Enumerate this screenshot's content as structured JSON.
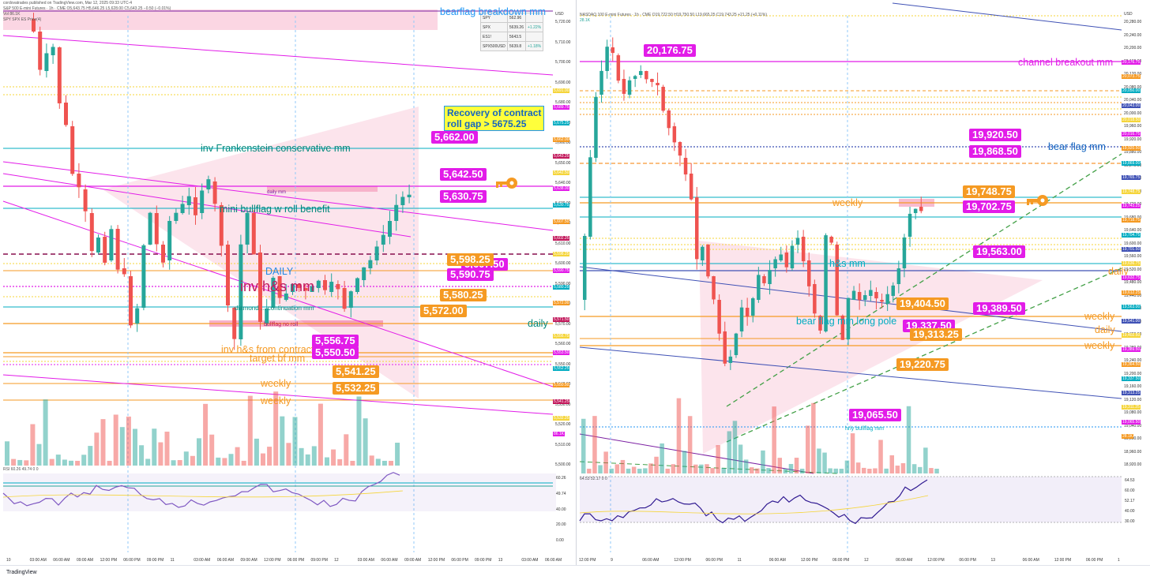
{
  "left": {
    "header": "cordovatrades published on TradingView.com, Mar 12, 2025 09:33 UTC-4",
    "title_line": "S&P 500 E-mini Futures · 1h · CME  O5,643.75 H5,646.25 L5,628.00 C5,643.25 −0.50 (−0.01%)",
    "vol_line": "Vol 86.1K",
    "compare_line": "SPY SPX ES Price(4)",
    "rsi_line": "RSI 60.26 49.74 0 0",
    "compare_table": [
      {
        "sym": "SPY",
        "val": "562.96",
        "chg": ""
      },
      {
        "sym": "SPX",
        "val": "5639.26",
        "chg": "+1.22%"
      },
      {
        "sym": "ES1!",
        "val": "5643.5",
        "chg": ""
      },
      {
        "sym": "SPX500USD",
        "val": "5639.8",
        "chg": "+1.18%"
      }
    ],
    "annotations": [
      {
        "text": "bearflag breakdown mm",
        "color": "#2196f3"
      },
      {
        "text": "inv Frankenstein conservative mm",
        "color": "#00897b"
      },
      {
        "text": "daily mm",
        "color": "#7b1fa2"
      },
      {
        "text": "mini bullflag w roll benefit",
        "color": "#00897b"
      },
      {
        "text": "DAILY",
        "color": "#1e88e5"
      },
      {
        "text": "inv h&s mm",
        "color": "#c2185b"
      },
      {
        "text": "diamond ... continuation mm",
        "color": "#00897b"
      },
      {
        "text": "bullflag no roll",
        "color": "#c2185b"
      },
      {
        "text": "daily",
        "color": "#00897b"
      },
      {
        "text": "inv h&s from contract",
        "color": "#f59a23"
      },
      {
        "text": "target bf mm",
        "color": "#f59a23"
      },
      {
        "text": "weekly",
        "color": "#f59a23"
      },
      {
        "text": "weekly",
        "color": "#f59a23"
      }
    ],
    "callout": {
      "line1": "Recovery of contract",
      "line2": "roll gap > 5675.25"
    },
    "boxes": [
      {
        "text": "5,662.00",
        "style": "mag"
      },
      {
        "text": "5,642.50",
        "style": "mag"
      },
      {
        "text": "5,630.75",
        "style": "mag"
      },
      {
        "text": "5,607.50",
        "style": "mag"
      },
      {
        "text": "5,598.25",
        "style": "org"
      },
      {
        "text": "5,590.75",
        "style": "mag"
      },
      {
        "text": "5,580.25",
        "style": "org"
      },
      {
        "text": "5,572.00",
        "style": "org"
      },
      {
        "text": "5,556.75",
        "style": "mag"
      },
      {
        "text": "5,550.50",
        "style": "mag"
      },
      {
        "text": "5,541.25",
        "style": "org"
      },
      {
        "text": "5,532.25",
        "style": "org"
      }
    ],
    "price_axis": [
      "USD",
      "5,720.00",
      "5,710.00",
      "5,700.00",
      "5,690.00",
      "5,680.00",
      "5,670.00",
      "5,660.00",
      "5,650.00",
      "5,640.00",
      "5,630.00",
      "5,620.00",
      "5,610.00",
      "5,600.00",
      "5,590.00",
      "5,580.00",
      "5,570.00",
      "5,560.00",
      "5,550.00",
      "5,540.00",
      "5,530.00",
      "5,520.00",
      "5,510.00",
      "5,500.00"
    ],
    "price_tags": [
      "5,691.00",
      "5,689.75",
      "5,675.25",
      "5,662.00",
      "5,643.25",
      "5,642.50",
      "5,638.00",
      "5,630.75",
      "5,607.50",
      "5,602.25",
      "5,598.25",
      "5,590.75",
      "5,580.25",
      "5,572.00",
      "5,571.50",
      "5,556.75",
      "5,553.50",
      "5,552.25",
      "5,550.50",
      "5,541.25",
      "5,532.25",
      "86.1K"
    ],
    "rsi_axis": [
      "60.26",
      "49.74",
      "40.00",
      "20.00",
      "0.00"
    ],
    "time_axis": [
      "10",
      "03:00 AM",
      "06:00 AM",
      "09:00 AM",
      "12:00 PM",
      "06:00 PM",
      "09:00 PM",
      "11",
      "03:00 AM",
      "06:00 AM",
      "09:00 AM",
      "12:00 PM",
      "06:00 PM",
      "09:00 PM",
      "12",
      "03:00 AM",
      "06:00 AM",
      "09:00 AM",
      "12:00 PM",
      "06:00 PM",
      "09:00 PM",
      "13",
      "03:00 AM",
      "06:00 AM"
    ]
  },
  "right": {
    "title_line": "NASDAQ 100 E-mini Futures · 1h · CME  O19,722.50 H19,750.50 L19,665.25 C19,743.25 +21.25 (+0.11%)",
    "vol_line": "28.1K",
    "rsi_line": "64.53 52.17 0 0",
    "annotations": [
      {
        "text": "channel breakout mm",
        "color": "#e21ce8"
      },
      {
        "text": "bear flag mm",
        "color": "#1565c0"
      },
      {
        "text": "weekly",
        "color": "#f59a23"
      },
      {
        "text": "h&s mm",
        "color": "#00acc1"
      },
      {
        "text": "daily",
        "color": "#f59a23"
      },
      {
        "text": "bear flag mm long pole",
        "color": "#00acc1"
      },
      {
        "text": "weekly",
        "color": "#f59a23"
      },
      {
        "text": "daily",
        "color": "#f59a23"
      },
      {
        "text": "weekly",
        "color": "#f59a23"
      },
      {
        "text": "hrly bullflag mm",
        "color": "#00acc1"
      }
    ],
    "boxes": [
      {
        "text": "20,176.75",
        "style": "mag"
      },
      {
        "text": "19,920.50",
        "style": "mag"
      },
      {
        "text": "19,868.50",
        "style": "mag"
      },
      {
        "text": "19,748.75",
        "style": "org"
      },
      {
        "text": "19,702.75",
        "style": "mag"
      },
      {
        "text": "19,563.00",
        "style": "mag"
      },
      {
        "text": "19,404.50",
        "style": "org"
      },
      {
        "text": "19,389.50",
        "style": "mag"
      },
      {
        "text": "19,337.50",
        "style": "mag"
      },
      {
        "text": "19,313.25",
        "style": "org"
      },
      {
        "text": "19,220.75",
        "style": "org"
      },
      {
        "text": "19,065.50",
        "style": "mag"
      }
    ],
    "price_axis": [
      "USD",
      "20,280.00",
      "20,240.00",
      "20,200.00",
      "20,160.00",
      "20,120.00",
      "20,080.00",
      "20,040.00",
      "20,000.00",
      "19,960.00",
      "19,920.00",
      "19,880.00",
      "19,840.00",
      "19,800.00",
      "19,760.00",
      "19,720.00",
      "19,680.00",
      "19,640.00",
      "19,600.00",
      "19,560.00",
      "19,520.00",
      "19,480.00",
      "19,440.00",
      "19,400.00",
      "19,360.00",
      "19,320.00",
      "19,280.00",
      "19,240.00",
      "19,200.00",
      "19,160.00",
      "19,120.00",
      "19,080.00",
      "19,040.00",
      "19,000.00",
      "18,960.00",
      "18,920.00"
    ],
    "price_tags": [
      "20,176.75",
      "20,073.75",
      "20,050.00",
      "20,043.00",
      "20,018.50",
      "20,016.75",
      "19,920.50",
      "19,869.00",
      "19,765.75",
      "19,748.75",
      "19,743.25",
      "19,718.75",
      "19,704.75",
      "19,701.50",
      "19,636.75",
      "19,632.75",
      "19,612.25",
      "19,563.00",
      "19,541.00",
      "19,402.50",
      "19,389.50",
      "19,364.50",
      "19,337.50",
      "19,313.25",
      "19,311.25",
      "19,065.50",
      "28.1K"
    ],
    "rsi_axis": [
      "64.53",
      "60.00",
      "52.17",
      "40.00",
      "30.00"
    ],
    "time_axis": [
      "12:00 PM",
      "9",
      "06:00 AM",
      "12:00 PM",
      "06:00 PM",
      "11",
      "06:00 AM",
      "12:00 PM",
      "06:00 PM",
      "12",
      "06:00 AM",
      "12:00 PM",
      "06:00 PM",
      "13",
      "06:00 AM",
      "12:00 PM",
      "06:00 PM",
      "1"
    ]
  },
  "footer": {
    "brand": "TradingView"
  },
  "colors": {
    "up": "#26a69a",
    "down": "#ef5350",
    "magenta": "#e21ce8",
    "orange": "#f59a23",
    "teal": "#00acc1",
    "blue": "#2196f3"
  }
}
